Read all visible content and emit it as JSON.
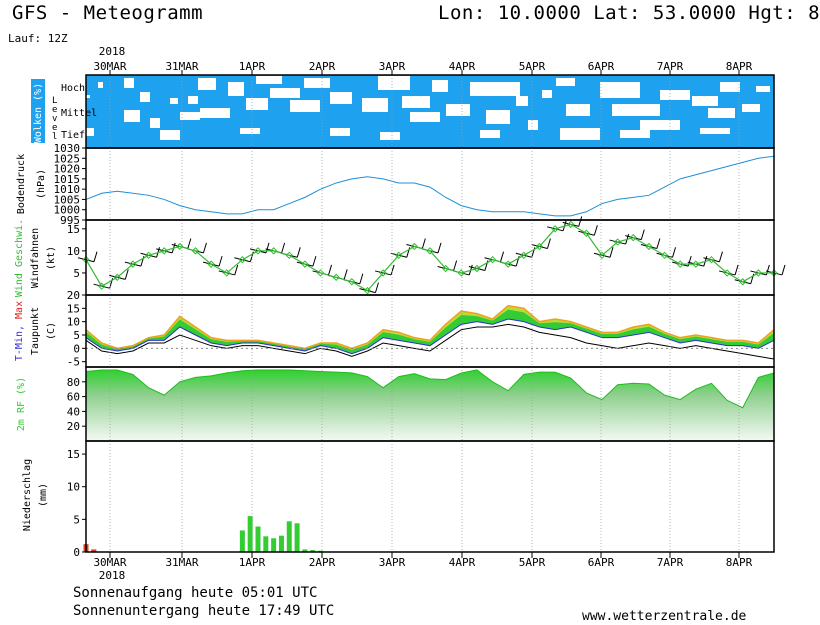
{
  "header": {
    "title": "GFS - Meteogramm",
    "coords": "Lon: 10.0000 Lat: 53.0000 Hgt: 8",
    "run": "Lauf: 12Z"
  },
  "footer": {
    "sunrise": "Sonnenaufgang heute 05:01 UTC",
    "sunset": "Sonnenuntergang heute 17:49 UTC",
    "site": "www.wetterzentrale.de"
  },
  "colors": {
    "cloud": "#1ea2f0",
    "pressure": "#1e8fd6",
    "wind": "#33bb33",
    "tdew": "#000000",
    "rh": "#33cc33",
    "precip_conv": "#33cc33",
    "precip_strat": "#e04020",
    "tmin": "#3030d0",
    "tmax": "#e02020"
  },
  "chart_data": [
    {
      "type": "heatmap",
      "panel": "clouds",
      "ylabel_a": "Wolken (%)",
      "ylabel_b": "Level",
      "levels": [
        "Hoch",
        "Mittel",
        "Tief"
      ],
      "time_labels": [
        "30MAR",
        "31MAR",
        "1APR",
        "2APR",
        "3APR",
        "4APR",
        "5APR",
        "6APR",
        "7APR",
        "8APR"
      ],
      "year": "2018"
    },
    {
      "type": "line",
      "panel": "pressure",
      "ylabel_a": "Bodendruck",
      "ylabel_b": "(hPa)",
      "unit": "hPa",
      "ylim": [
        995,
        1030
      ],
      "yticks": [
        995,
        1000,
        1005,
        1010,
        1015,
        1020,
        1025,
        1030
      ],
      "x_hours": [
        0,
        6,
        12,
        18,
        24,
        30,
        36,
        42,
        48,
        54,
        60,
        66,
        72,
        78,
        84,
        90,
        96,
        102,
        108,
        114,
        120,
        126,
        132,
        138,
        144,
        150,
        156,
        162,
        168,
        174,
        180,
        186,
        192,
        198,
        204,
        210,
        216,
        222,
        228,
        234,
        240,
        246,
        252,
        258,
        264
      ],
      "values": [
        1005,
        1008,
        1009,
        1008,
        1007,
        1005,
        1002,
        1000,
        999,
        998,
        998,
        1000,
        1000,
        1003,
        1006,
        1010,
        1013,
        1015,
        1016,
        1015,
        1013,
        1013,
        1011,
        1006,
        1002,
        1000,
        999,
        999,
        999,
        998,
        997,
        997,
        999,
        1003,
        1005,
        1006,
        1007,
        1011,
        1015,
        1017,
        1019,
        1021,
        1023,
        1025,
        1026
      ]
    },
    {
      "type": "line",
      "panel": "wind",
      "ylabel_a": "Wind Geschwi.",
      "ylabel_b": "Windfahnen",
      "ylabel_c": "(kt)",
      "unit": "kt",
      "ylim": [
        0,
        17
      ],
      "yticks": [
        5,
        10,
        15
      ],
      "x_hours": [
        0,
        6,
        12,
        18,
        24,
        30,
        36,
        42,
        48,
        54,
        60,
        66,
        72,
        78,
        84,
        90,
        96,
        102,
        108,
        114,
        120,
        126,
        132,
        138,
        144,
        150,
        156,
        162,
        168,
        174,
        180,
        186,
        192,
        198,
        204,
        210,
        216,
        222,
        228,
        234,
        240,
        246,
        252,
        258,
        264
      ],
      "values": [
        8,
        2,
        4,
        7,
        9,
        10,
        11,
        10,
        7,
        5,
        8,
        10,
        10,
        9,
        7,
        5,
        4,
        3,
        1,
        5,
        9,
        11,
        10,
        6,
        5,
        6,
        8,
        7,
        9,
        11,
        15,
        16,
        14,
        9,
        12,
        13,
        11,
        9,
        7,
        7,
        8,
        5,
        3,
        5,
        5
      ]
    },
    {
      "type": "area",
      "panel": "temperature",
      "ylabel_a": "T-Min, Max",
      "ylabel_b": "Taupunkt",
      "ylabel_c": "(C)",
      "unit": "C",
      "ylim": [
        -7,
        20
      ],
      "yticks": [
        -5,
        0,
        5,
        10,
        15,
        20
      ],
      "x_hours": [
        0,
        6,
        12,
        18,
        24,
        30,
        36,
        42,
        48,
        54,
        60,
        66,
        72,
        78,
        84,
        90,
        96,
        102,
        108,
        114,
        120,
        126,
        132,
        138,
        144,
        150,
        156,
        162,
        168,
        174,
        180,
        186,
        192,
        198,
        204,
        210,
        216,
        222,
        228,
        234,
        240,
        246,
        252,
        258,
        264
      ],
      "tmin": [
        4,
        0,
        -1,
        0,
        3,
        3,
        8,
        5,
        2,
        1,
        2,
        2,
        1,
        0,
        -1,
        1,
        0,
        -2,
        0,
        4,
        3,
        2,
        1,
        5,
        9,
        10,
        9,
        11,
        10,
        8,
        7,
        8,
        6,
        4,
        4,
        5,
        6,
        4,
        2,
        3,
        2,
        1,
        1,
        0,
        3
      ],
      "tmax": [
        7,
        2,
        0,
        1,
        4,
        5,
        12,
        8,
        4,
        3,
        3,
        3,
        2,
        1,
        0,
        2,
        2,
        0,
        2,
        7,
        6,
        4,
        3,
        9,
        14,
        13,
        11,
        16,
        15,
        10,
        11,
        10,
        8,
        6,
        6,
        8,
        9,
        6,
        4,
        5,
        4,
        3,
        3,
        2,
        7
      ],
      "tdew": [
        3,
        -1,
        -2,
        -1,
        2,
        2,
        5,
        3,
        1,
        0,
        1,
        1,
        0,
        -1,
        -2,
        0,
        -1,
        -3,
        -1,
        2,
        1,
        0,
        -1,
        3,
        7,
        8,
        8,
        9,
        8,
        6,
        5,
        4,
        2,
        1,
        0,
        1,
        2,
        1,
        0,
        1,
        0,
        -1,
        -2,
        -3,
        -4
      ]
    },
    {
      "type": "area",
      "panel": "humidity",
      "ylabel_a": "2m RF (%)",
      "unit": "%",
      "ylim": [
        0,
        100
      ],
      "yticks": [
        20,
        40,
        60,
        80
      ],
      "x_hours": [
        0,
        6,
        12,
        18,
        24,
        30,
        36,
        42,
        48,
        54,
        60,
        66,
        72,
        78,
        84,
        90,
        96,
        102,
        108,
        114,
        120,
        126,
        132,
        138,
        144,
        150,
        156,
        162,
        168,
        174,
        180,
        186,
        192,
        198,
        204,
        210,
        216,
        222,
        228,
        234,
        240,
        246,
        252,
        258,
        264
      ],
      "values": [
        94,
        96,
        96,
        90,
        72,
        62,
        80,
        86,
        88,
        92,
        95,
        96,
        96,
        96,
        95,
        94,
        93,
        92,
        87,
        72,
        87,
        91,
        84,
        83,
        92,
        96,
        80,
        68,
        90,
        93,
        93,
        85,
        65,
        56,
        76,
        78,
        77,
        62,
        56,
        70,
        78,
        55,
        45,
        86,
        92
      ]
    },
    {
      "type": "bar",
      "panel": "precipitation",
      "ylabel_a": "Niederschlag",
      "ylabel_b": "(mm)",
      "unit": "mm",
      "ylim": [
        0,
        17
      ],
      "yticks": [
        0,
        5,
        10,
        15
      ],
      "x_hours": [
        0,
        3,
        6,
        9,
        12,
        15,
        18,
        21,
        24,
        27,
        30,
        33,
        36,
        39,
        42,
        45,
        48,
        51,
        54,
        57,
        60,
        63,
        66,
        69,
        72,
        75,
        78,
        81,
        84,
        87,
        90,
        93,
        96,
        99,
        102,
        105,
        108,
        111,
        114,
        117,
        120,
        123,
        126,
        129,
        132,
        135,
        138,
        141,
        144,
        147,
        150,
        153,
        156,
        159,
        162,
        165,
        168,
        171,
        174,
        177,
        180,
        183,
        186,
        189,
        192,
        195,
        198,
        201,
        204,
        207,
        210,
        213,
        216,
        219,
        222,
        225,
        228,
        231,
        234,
        237,
        240,
        243,
        246,
        249,
        252,
        255,
        258,
        261,
        264
      ],
      "convective": [
        0,
        0.3,
        0,
        0,
        0,
        0,
        0,
        0,
        0,
        0,
        0,
        0,
        0,
        0,
        0,
        0,
        0,
        0,
        0,
        0,
        3.3,
        5.5,
        3.9,
        2.4,
        2.1,
        2.5,
        4.7,
        4.4,
        0.4,
        0.3,
        0.2,
        0,
        0,
        0,
        0,
        0,
        0,
        0,
        0,
        0,
        0,
        0,
        0,
        0,
        0,
        0,
        0,
        0,
        0,
        0,
        0,
        0,
        0,
        0,
        0,
        0,
        0,
        0,
        0,
        0,
        0,
        0,
        0,
        0,
        0,
        0,
        0,
        0,
        0,
        0,
        0,
        0,
        0,
        0,
        0,
        0,
        0,
        0,
        0,
        0,
        0,
        0,
        0,
        0,
        0,
        0,
        0,
        0,
        0
      ],
      "stratiform": [
        1.2,
        0.4,
        0,
        0,
        0,
        0,
        0,
        0,
        0,
        0,
        0,
        0,
        0,
        0,
        0,
        0,
        0,
        0,
        0,
        0,
        0,
        0,
        0,
        0,
        0,
        0,
        0,
        0,
        0,
        0,
        0,
        0,
        0,
        0,
        0,
        0,
        0,
        0,
        0,
        0,
        0,
        0,
        0,
        0,
        0,
        0,
        0,
        0,
        0,
        0,
        0,
        0,
        0,
        0,
        0,
        0,
        0,
        0,
        0,
        0,
        0,
        0,
        0,
        0,
        0,
        0,
        0,
        0,
        0,
        0,
        0,
        0,
        0,
        0,
        0,
        0,
        0,
        0,
        0,
        0,
        0,
        0,
        0,
        0,
        0,
        0,
        0,
        0,
        0
      ]
    }
  ]
}
